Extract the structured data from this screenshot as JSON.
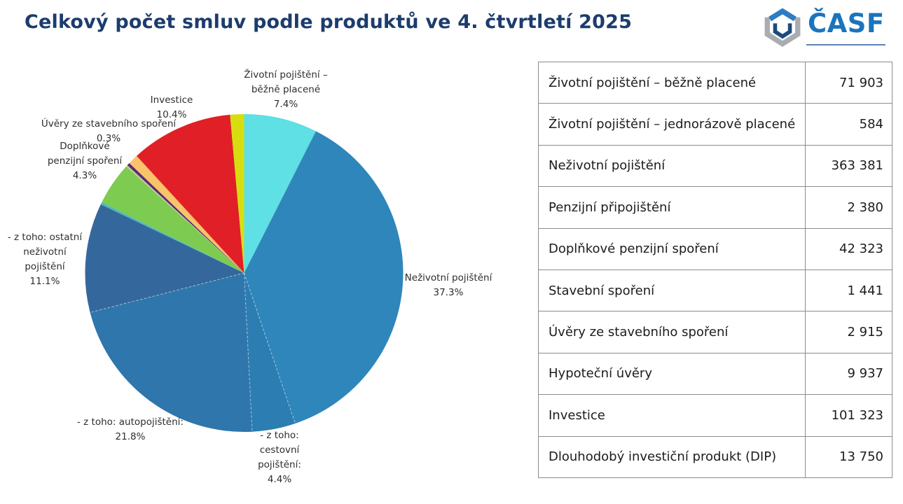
{
  "page": {
    "title": "Celkový počet smluv podle produktů ve 4. čtvrtletí 2025"
  },
  "logo": {
    "text": "ČASF",
    "colors": {
      "roof_blue": "#2e7cc3",
      "frame_gray": "#a9adb2",
      "inner_navy": "#1b4a7e",
      "text_blue": "#1b74bc"
    }
  },
  "chart_data": {
    "type": "pie",
    "title": "Celkový počet smluv podle produktů ve 4. čtvrtletí 2025",
    "unit": "%",
    "start_angle": "12-o-clock, clockwise",
    "slices": [
      {
        "name": "Životní pojištění – běžně placené",
        "pct": 7.4,
        "color": "#5fe0e4",
        "labeled": true
      },
      {
        "name": "Životní pojištění – jednorázově placené",
        "pct": 0.06,
        "color": "#45c8d8",
        "labeled": false
      },
      {
        "name": "Neživotní pojištění",
        "pct": 37.3,
        "color": "#2e86bb",
        "labeled": true
      },
      {
        "name": "- z toho: cestovní pojištění",
        "pct": 4.4,
        "color": "#2c7db1",
        "labeled": true,
        "dashed_edge": true
      },
      {
        "name": "- z toho: autopojištění",
        "pct": 21.8,
        "color": "#2f76ac",
        "labeled": true,
        "dashed_edge": true
      },
      {
        "name": "- z toho: ostatní neživotní pojištění",
        "pct": 11.1,
        "color": "#34689c",
        "labeled": true,
        "dashed_edge": true
      },
      {
        "name": "Penzijní připojištění",
        "pct": 0.24,
        "color": "#52b8b8",
        "labeled": false
      },
      {
        "name": "Doplňkové penzijní spoření",
        "pct": 4.35,
        "color": "#7ecb52",
        "labeled": true
      },
      {
        "name": "Stavební spoření",
        "pct": 0.15,
        "color": "#cbcb9b",
        "labeled": false
      },
      {
        "name": "Úvěry ze stavebního spoření",
        "pct": 0.3,
        "color": "#5a2d71",
        "labeled": true
      },
      {
        "name": "Hypoteční úvěry",
        "pct": 1.02,
        "color": "#f9c36a",
        "labeled": false
      },
      {
        "name": "Investice",
        "pct": 10.4,
        "color": "#e11f26",
        "labeled": true
      },
      {
        "name": "Dlouhodobý investiční produkt (DIP)",
        "pct": 1.41,
        "color": "#d7de10",
        "labeled": false
      }
    ],
    "labels": {
      "zivotni_bezne": {
        "name": "Životní pojištění – běžně placené",
        "pct": "7.4%"
      },
      "investice": {
        "name": "Investice",
        "pct": "10.4%"
      },
      "uvery": {
        "name": "Úvěry ze stavebního spoření",
        "pct": "0.3%"
      },
      "dps": {
        "name": "Doplňkové penzijní spoření",
        "pct": "4.3%"
      },
      "ostatni": {
        "name": "- z toho: ostatní neživotní pojištění",
        "pct": "11.1%"
      },
      "auto": {
        "name": "- z toho: autopojištění:",
        "pct": "21.8%"
      },
      "cestovni": {
        "name": "- z toho: cestovní pojištění:",
        "pct": "4.4%"
      },
      "nezivotni": {
        "name": "Neživotní pojištění",
        "pct": "37.3%"
      }
    }
  },
  "table": {
    "rows": [
      {
        "label": "Životní pojištění – běžně placené",
        "value": "71 903"
      },
      {
        "label": "Životní pojištění – jednorázově placené",
        "value": "584"
      },
      {
        "label": "Neživotní pojištění",
        "value": "363 381"
      },
      {
        "label": "Penzijní připojištění",
        "value": "2 380"
      },
      {
        "label": "Doplňkové penzijní spoření",
        "value": "42 323"
      },
      {
        "label": "Stavební spoření",
        "value": "1 441"
      },
      {
        "label": "Úvěry ze stavebního spoření",
        "value": "2 915"
      },
      {
        "label": "Hypoteční úvěry",
        "value": "9 937"
      },
      {
        "label": "Investice",
        "value": "101 323"
      },
      {
        "label": "Dlouhodobý investiční produkt (DIP)",
        "value": "13 750"
      }
    ]
  }
}
